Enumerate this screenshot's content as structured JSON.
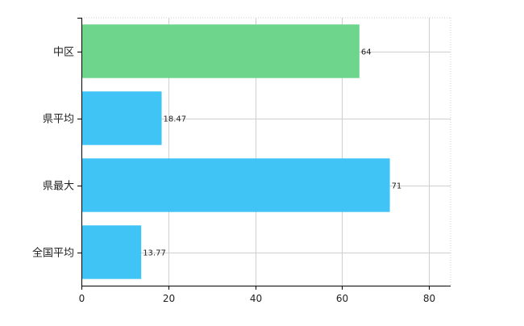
{
  "chart_data": {
    "type": "bar",
    "orientation": "horizontal",
    "categories": [
      "中区",
      "県平均",
      "県最大",
      "全国平均"
    ],
    "values": [
      64,
      18.47,
      71,
      13.77
    ],
    "value_labels": [
      "64",
      "18.47",
      "71",
      "13.77"
    ],
    "bar_colors": [
      "#6dd68c",
      "#3fc4f5",
      "#3fc4f5",
      "#3fc4f5"
    ],
    "xlim": [
      0,
      85
    ],
    "x_ticks": [
      0,
      20,
      40,
      60,
      80
    ],
    "x_tick_labels": [
      "0",
      "20",
      "40",
      "60",
      "80"
    ],
    "grid": true,
    "title": "",
    "xlabel": "",
    "ylabel": "",
    "legend": "none"
  }
}
